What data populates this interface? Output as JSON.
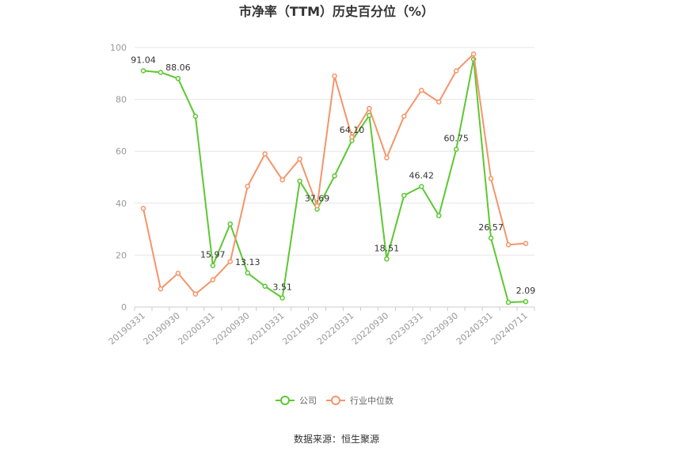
{
  "chart_data": {
    "type": "line",
    "title": "市净率（TTM）历史百分位（%）",
    "xlabel": "",
    "ylabel": "",
    "ylim": [
      0,
      100
    ],
    "yticks": [
      0,
      20,
      40,
      60,
      80,
      100
    ],
    "grid": true,
    "legend": "bottom-center",
    "x": [
      "20190331",
      "20190630",
      "20190930",
      "20191231",
      "20200331",
      "20200630",
      "20200930",
      "20201231",
      "20210331",
      "20210630",
      "20210930",
      "20211231",
      "20220331",
      "20220630",
      "20220930",
      "20221231",
      "20230331",
      "20230630",
      "20230930",
      "20231231",
      "20240331",
      "20240630",
      "20240711"
    ],
    "x_tick_labels": [
      "20190331",
      "20190930",
      "20200331",
      "20200930",
      "20210331",
      "20210930",
      "20220331",
      "20220930",
      "20230331",
      "20230930",
      "20240331",
      "20240711"
    ],
    "series": [
      {
        "name": "公司",
        "color": "#5cc832",
        "values": [
          91.04,
          90.4,
          88.06,
          73.5,
          15.97,
          32.0,
          13.13,
          8.0,
          3.51,
          48.5,
          37.69,
          50.5,
          64.1,
          73.8,
          18.51,
          43.0,
          46.42,
          35.2,
          60.75,
          95.5,
          26.57,
          1.8,
          2.09
        ],
        "labels": {
          "0": "91.04",
          "2": "88.06",
          "4": "15.97",
          "6": "13.13",
          "8": "3.51",
          "10": "37.69",
          "12": "64.10",
          "14": "18.51",
          "16": "46.42",
          "18": "60.75",
          "20": "26.57",
          "22": "2.09"
        }
      },
      {
        "name": "行业中位数",
        "color": "#f4956a",
        "values": [
          38.0,
          7.0,
          13.0,
          5.0,
          10.5,
          17.5,
          46.5,
          59.0,
          49.0,
          57.0,
          39.0,
          89.0,
          65.5,
          76.5,
          57.5,
          73.5,
          83.5,
          79.0,
          91.0,
          97.5,
          49.5,
          24.0,
          24.5
        ]
      }
    ],
    "source": "数据来源：恒生聚源"
  }
}
